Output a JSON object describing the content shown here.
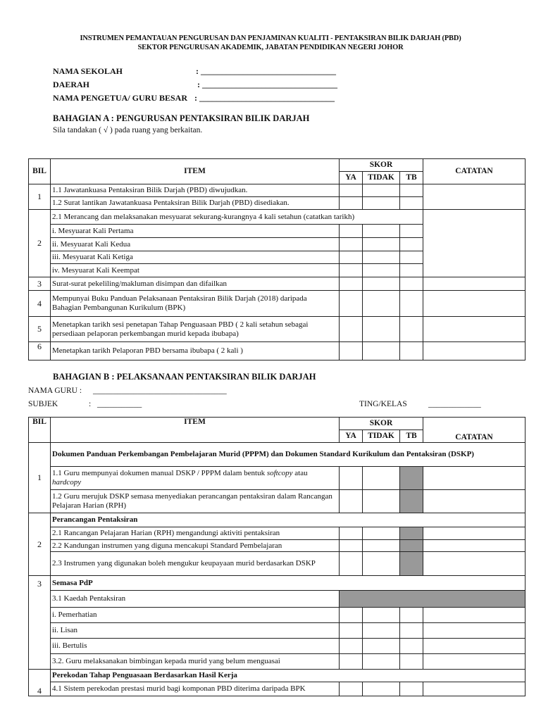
{
  "header": {
    "line1": "INSTRUMEN PEMANTAUAN PENGURUSAN DAN PENJAMINAN KUALITI - PENTAKSIRAN BILIK DARJAH (PBD)",
    "line2": "SEKTOR PENGURUSAN AKADEMIK, JABATAN PENDIDIKAN NEGERI JOHOR"
  },
  "fields": [
    {
      "label": "NAMA SEKOLAH",
      "value": ": ________________________________"
    },
    {
      "label": "DAERAH",
      "value": ": ________________________________"
    },
    {
      "label": "NAMA PENGETUA/ GURU BESAR",
      "value": ": ________________________________"
    }
  ],
  "section_a": {
    "title": "BAHAGIAN A  :  PENGURUSAN PENTAKSIRAN BILIK DARJAH",
    "instruction": "Sila  tandakan (  √  )   pada ruang yang berkaitan.",
    "columns": {
      "bil": "BIL",
      "item": "ITEM",
      "skor": "SKOR",
      "ya": "YA",
      "tidak": "TIDAK",
      "tb": "TB",
      "catatan": "CATATAN"
    },
    "groups": [
      {
        "bil": "1",
        "rows": [
          {
            "text": "1.1 Jawatankuasa Pentaksiran Bilik Darjah (PBD) diwujudkan."
          },
          {
            "text": "1.2 Surat lantikan Jawatankuasa Pentaksiran Bilik Darjah (PBD) disediakan."
          }
        ]
      },
      {
        "bil": "2",
        "lead": "2.1 Merancang dan melaksanakan  mesyuarat sekurang-kurangnya 4 kali setahun (catatkan tarikh)",
        "rows": [
          {
            "text": "i.    Mesyuarat Kali Pertama"
          },
          {
            "text": "ii.   Mesyuarat Kali Kedua"
          },
          {
            "text": "iii.  Mesyuarat Kali Ketiga"
          },
          {
            "text": "iv.  Mesyuarat Kali Keempat"
          }
        ]
      },
      {
        "bil": "3",
        "rows": [
          {
            "text": "Surat-surat pekeliling/makluman disimpan dan difailkan"
          }
        ]
      },
      {
        "bil": "4",
        "rows": [
          {
            "text": "Mempunyai Buku Panduan Pelaksanaan Pentaksiran Bilik Darjah (2018) daripada Bahagian Pembangunan Kurikulum (BPK)"
          }
        ]
      },
      {
        "bil": "5",
        "rows": [
          {
            "text": "Menetapkan tarikh sesi penetapan Tahap Penguasaan PBD ( 2 kali setahun sebagai persediaan pelaporan perkembangan murid kepada ibubapa)"
          }
        ]
      },
      {
        "bil": "6",
        "rows": [
          {
            "text": "Menetapkan tarikh Pelaporan PBD bersama ibubapa ( 2 kali )"
          }
        ]
      }
    ]
  },
  "section_b": {
    "title": "BAHAGIAN B  :  PELAKSANAAN PENTAKSIRAN BILIK DARJAH",
    "nama_guru_label": "NAMA GURU  :",
    "nama_guru_value": "_________________________________",
    "subjek_label": "SUBJEK",
    "subjek_colon": ":",
    "subjek_value": "___________",
    "ting_label": "TING/KELAS",
    "ting_value": "_____________",
    "columns": {
      "bil": "BIL",
      "item": "ITEM",
      "skor": "SKOR",
      "ya": "YA",
      "tidak": "TIDAK",
      "tb": "TB",
      "catatan": "CATATAN"
    },
    "groups": [
      {
        "bil": "1",
        "title": "Dokumen Panduan Perkembangan Pembelajaran Murid (PPPM) dan Dokumen Standard Kurikulum dan Pentaksiran (DSKP)",
        "rows": [
          {
            "parts": [
              {
                "t": "1.1  Guru mempunyai   dokumen manual DSKP / PPPM  dalam bentuk "
              },
              {
                "t": "softcopy",
                "i": true
              },
              {
                "t": " atau "
              },
              {
                "t": "hardcopy",
                "i": true
              }
            ],
            "tb_shaded": true
          },
          {
            "text": "1.2  Guru merujuk DSKP semasa menyediakan perancangan pentaksiran dalam Rancangan Pelajaran Harian (RPH)",
            "tb_shaded": true
          }
        ]
      },
      {
        "bil": "2",
        "title": "Perancangan Pentaksiran",
        "rows": [
          {
            "text": "2.1 Rancangan Pelajaran Harian (RPH) mengandungi aktiviti pentaksiran",
            "tb_shaded": true
          },
          {
            "text": "2.2  Kandungan instrumen yang diguna mencakupi Standard Pembelajaran",
            "tb_shaded": true
          },
          {
            "text": "2.3  Instrumen yang digunakan boleh mengukur keupayaan murid berdasarkan DSKP",
            "tb_shaded": true
          }
        ]
      },
      {
        "bil": "3",
        "title": "Semasa PdP",
        "rows": [
          {
            "text": "3.1 Kaedah Pentaksiran",
            "all_shaded": true
          },
          {
            "text": "i.   Pemerhatian"
          },
          {
            "text": "ii.   Lisan"
          },
          {
            "text": "iii.  Bertulis"
          },
          {
            "text": "3.2. Guru melaksanakan bimbingan kepada murid yang belum menguasai"
          }
        ]
      },
      {
        "bil": "4",
        "title": "Perekodan Tahap Penguasaan Berdasarkan Hasil Kerja",
        "rows": [
          {
            "text": "4.1  Sistem perekodan prestasi murid bagi komponan PBD diterima daripada BPK"
          }
        ]
      }
    ]
  },
  "colors": {
    "shade": "#999999",
    "border": "#222222"
  }
}
